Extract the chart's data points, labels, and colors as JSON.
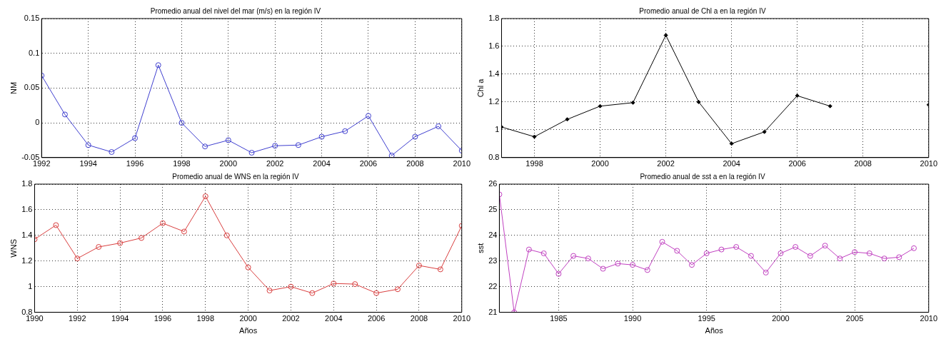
{
  "chart_data": [
    {
      "type": "line",
      "title": "Promedio anual del nivel del mar (m/s) en la región IV",
      "ylabel": "NM",
      "x": [
        1992,
        1993,
        1994,
        1995,
        1996,
        1997,
        1998,
        1999,
        2000,
        2001,
        2002,
        2003,
        2004,
        2005,
        2006,
        2007,
        2008,
        2009,
        2010
      ],
      "xlim": [
        1992,
        2010
      ],
      "xticks": [
        1992,
        1994,
        1996,
        1998,
        2000,
        2002,
        2004,
        2006,
        2008,
        2010
      ],
      "ylim": [
        -0.05,
        0.15
      ],
      "yticks": [
        -0.05,
        0,
        0.05,
        0.1,
        0.15
      ],
      "grid": true,
      "marker": "circle",
      "series": [
        {
          "color": "#3f3fcf",
          "values": [
            0.068,
            0.012,
            -0.032,
            -0.042,
            -0.022,
            0.083,
            0.0,
            -0.034,
            -0.025,
            -0.043,
            -0.033,
            -0.032,
            -0.02,
            -0.012,
            0.01,
            -0.047,
            -0.02,
            -0.005,
            -0.04
          ]
        }
      ]
    },
    {
      "type": "line",
      "title": "Promedio anual de Chl a en la región IV",
      "ylabel": "Chl a",
      "x": [
        1997,
        1998,
        1999,
        2000,
        2001,
        2002,
        2003,
        2004,
        2005,
        2006,
        2007,
        2008,
        2009,
        2010
      ],
      "xlim": [
        1997,
        2010
      ],
      "xticks": [
        1998,
        2000,
        2002,
        2004,
        2006,
        2008,
        2010
      ],
      "ylim": [
        0.8,
        1.8
      ],
      "yticks": [
        0.8,
        1,
        1.2,
        1.4,
        1.6,
        1.8
      ],
      "grid": true,
      "marker": "diamond",
      "series": [
        {
          "color": "#000000",
          "values": [
            1.02,
            0.95,
            1.075,
            1.17,
            1.195,
            1.68,
            1.2,
            0.9,
            0.985,
            1.245,
            1.17,
            null,
            null,
            1.18
          ]
        }
      ]
    },
    {
      "type": "line",
      "title": "Promedio anual de WNS en la región IV",
      "xlabel": "Años",
      "ylabel": "WNS",
      "x": [
        1990,
        1991,
        1992,
        1993,
        1994,
        1995,
        1996,
        1997,
        1998,
        1999,
        2000,
        2001,
        2002,
        2003,
        2004,
        2005,
        2006,
        2007,
        2008,
        2009,
        2010
      ],
      "xlim": [
        1990,
        2010
      ],
      "xticks": [
        1990,
        1992,
        1994,
        1996,
        1998,
        2000,
        2002,
        2004,
        2006,
        2008,
        2010
      ],
      "ylim": [
        0.8,
        1.8
      ],
      "yticks": [
        0.8,
        1,
        1.2,
        1.4,
        1.6,
        1.8
      ],
      "grid": true,
      "marker": "circle",
      "series": [
        {
          "color": "#d93f3f",
          "values": [
            1.37,
            1.48,
            1.22,
            1.31,
            1.34,
            1.38,
            1.495,
            1.43,
            1.705,
            1.4,
            1.15,
            0.97,
            1.0,
            0.95,
            1.025,
            1.02,
            0.95,
            0.98,
            1.165,
            1.135,
            1.475
          ]
        }
      ]
    },
    {
      "type": "line",
      "title": "Promedio anual de sst a en la región IV",
      "xlabel": "Años",
      "ylabel": "sst",
      "x": [
        1981,
        1982,
        1983,
        1984,
        1985,
        1986,
        1987,
        1988,
        1989,
        1990,
        1991,
        1992,
        1993,
        1994,
        1995,
        1996,
        1997,
        1998,
        1999,
        2000,
        2001,
        2002,
        2003,
        2004,
        2005,
        2006,
        2007,
        2008,
        2009
      ],
      "xlim": [
        1981,
        2010
      ],
      "xticks": [
        1985,
        1990,
        1995,
        2000,
        2005,
        2010
      ],
      "ylim": [
        21,
        26
      ],
      "yticks": [
        21,
        22,
        23,
        24,
        25,
        26
      ],
      "grid": true,
      "marker": "circle",
      "series": [
        {
          "color": "#c040c0",
          "values": [
            25.6,
            21.0,
            23.45,
            23.3,
            22.5,
            23.2,
            23.1,
            22.7,
            22.9,
            22.85,
            22.65,
            23.75,
            23.4,
            22.85,
            23.3,
            23.45,
            23.55,
            23.2,
            22.55,
            23.3,
            23.55,
            23.2,
            23.6,
            23.1,
            23.35,
            23.3,
            23.1,
            23.15,
            23.5
          ]
        }
      ]
    }
  ]
}
